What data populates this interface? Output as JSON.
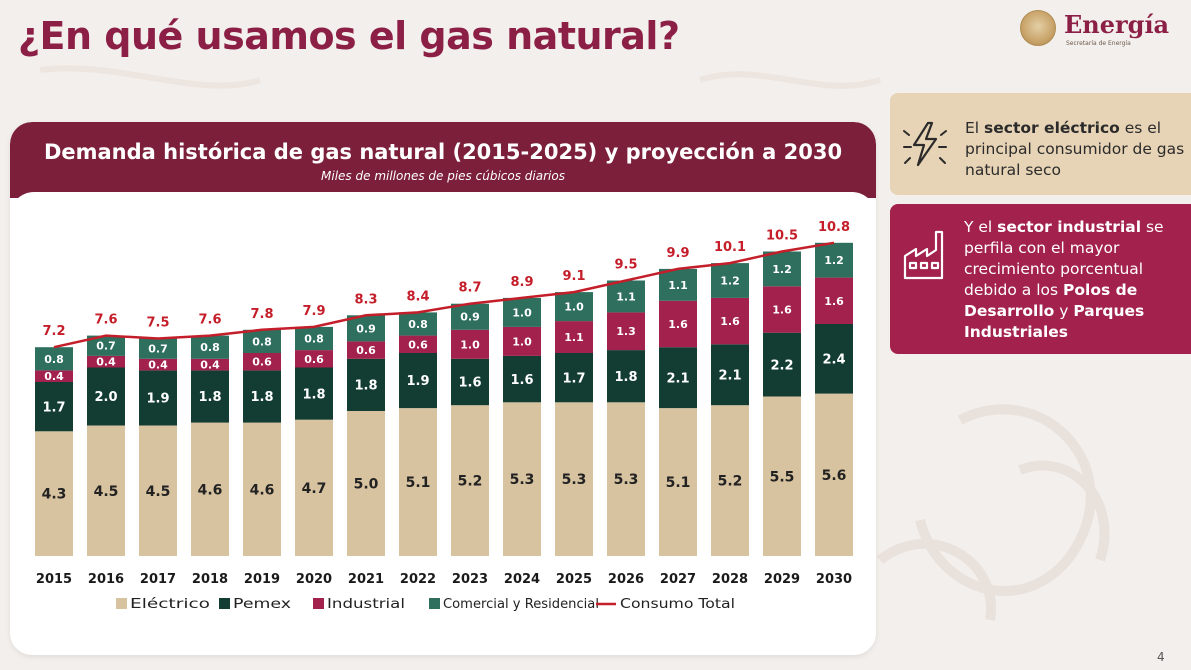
{
  "page": {
    "title": "¿En qué usamos el gas natural?",
    "page_number": "4"
  },
  "logo": {
    "brand": "Energía",
    "subtitle": "Secretaría de Energía"
  },
  "colors": {
    "electrico": "#d8c3a0",
    "pemex": "#133d33",
    "industrial": "#a3214d",
    "comercial": "#2f6f5e",
    "total_line": "#c41e2a",
    "title": "#8b1f45"
  },
  "chart_data": {
    "type": "bar",
    "stacked": true,
    "title": "Demanda histórica de gas natural (2015-2025) y proyección a 2030",
    "subtitle": "Miles de millones de pies cúbicos diarios",
    "categories": [
      "2015",
      "2016",
      "2017",
      "2018",
      "2019",
      "2020",
      "2021",
      "2022",
      "2023",
      "2024",
      "2025",
      "2026",
      "2027",
      "2028",
      "2029",
      "2030"
    ],
    "series": [
      {
        "name": "Eléctrico",
        "values": [
          4.3,
          4.5,
          4.5,
          4.6,
          4.6,
          4.7,
          5.0,
          5.1,
          5.2,
          5.3,
          5.3,
          5.3,
          5.1,
          5.2,
          5.5,
          5.6
        ]
      },
      {
        "name": "Pemex",
        "values": [
          1.7,
          2.0,
          1.9,
          1.8,
          1.8,
          1.8,
          1.8,
          1.9,
          1.6,
          1.6,
          1.7,
          1.8,
          2.1,
          2.1,
          2.2,
          2.4
        ]
      },
      {
        "name": "Industrial",
        "values": [
          0.4,
          0.4,
          0.4,
          0.4,
          0.6,
          0.6,
          0.6,
          0.6,
          1.0,
          1.0,
          1.1,
          1.3,
          1.6,
          1.6,
          1.6,
          1.6
        ]
      },
      {
        "name": "Comercial y Residencial",
        "values": [
          0.8,
          0.7,
          0.7,
          0.8,
          0.8,
          0.8,
          0.9,
          0.8,
          0.9,
          1.0,
          1.0,
          1.1,
          1.1,
          1.2,
          1.2,
          1.2
        ]
      }
    ],
    "line": {
      "name": "Consumo Total",
      "values": [
        7.2,
        7.6,
        7.5,
        7.6,
        7.8,
        7.9,
        8.3,
        8.4,
        8.7,
        8.9,
        9.1,
        9.5,
        9.9,
        10.1,
        10.5,
        10.8
      ]
    },
    "ylim": [
      0,
      11.5
    ],
    "legend": [
      "Eléctrico",
      "Pemex",
      "Industrial",
      "Comercial y Residencial",
      "Consumo Total"
    ],
    "legend_position": "bottom"
  },
  "info_boxes": [
    {
      "icon": "lightning-icon",
      "pre": "El ",
      "bold": "sector eléctrico",
      "post": " es el principal consumidor de gas natural seco"
    },
    {
      "icon": "factory-icon",
      "pre": "Y el ",
      "bold": "sector industrial",
      "mid": " se perfila con el mayor crecimiento porcentual debido a los ",
      "bold2": "Polos de Desarrollo",
      "mid2": " y ",
      "bold3": "Parques Industriales"
    }
  ]
}
